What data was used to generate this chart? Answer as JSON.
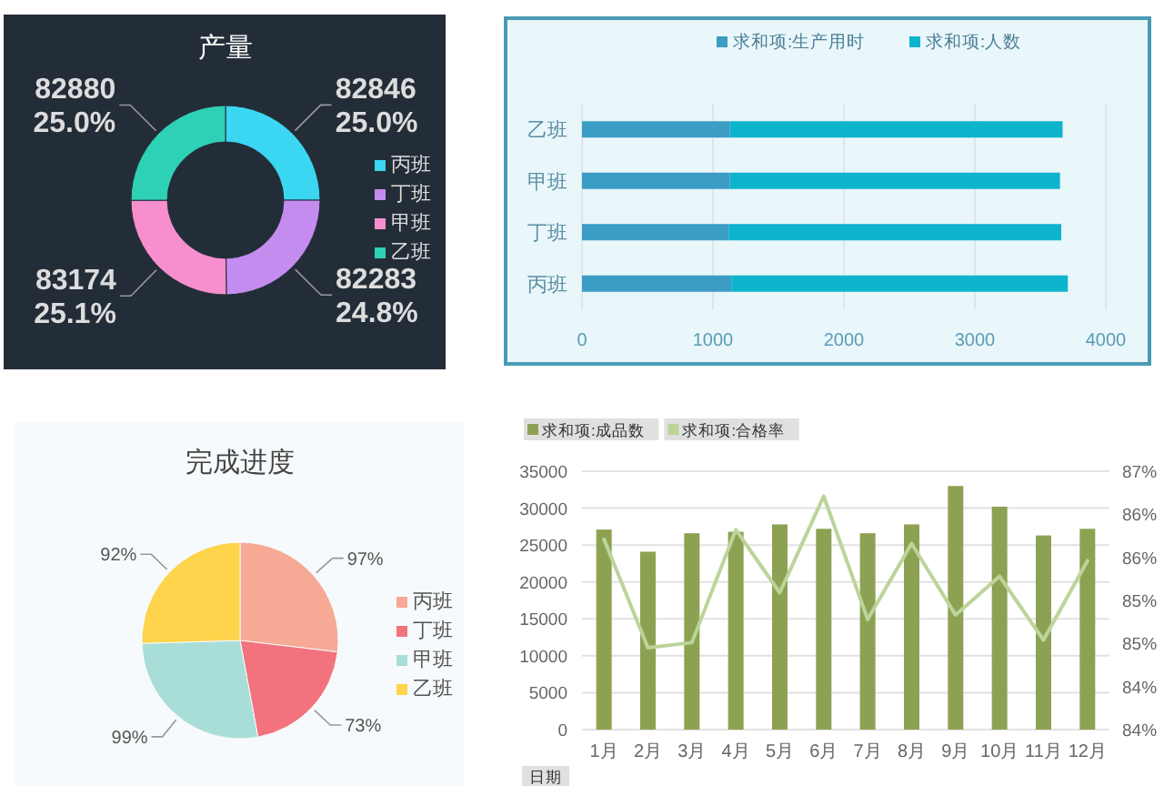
{
  "chart_data": [
    {
      "type": "donut",
      "title": "产量",
      "categories": [
        "丙班",
        "丁班",
        "甲班",
        "乙班"
      ],
      "values": [
        82846,
        82283,
        83174,
        82880
      ],
      "colors": [
        "#3ad6f2",
        "#c58cf0",
        "#f78fcf",
        "#2ed1b5"
      ],
      "value_labels": [
        "82846\n25.0%",
        "82283\n24.8%",
        "83174\n25.1%",
        "82880\n25.0%"
      ],
      "legend": "right"
    },
    {
      "type": "bar",
      "orientation": "horizontal",
      "stacked": true,
      "categories": [
        "乙班",
        "甲班",
        "丁班",
        "丙班"
      ],
      "series": [
        {
          "name": "求和项:生产用时",
          "color": "#3b9cc4",
          "values": [
            1130,
            1130,
            1120,
            1140
          ]
        },
        {
          "name": "求和项:人数",
          "color": "#0db4cc",
          "values": [
            2540,
            2520,
            2540,
            2570
          ]
        }
      ],
      "xlim": [
        0,
        4000
      ],
      "xticks": [
        0,
        1000,
        2000,
        3000,
        4000
      ],
      "grid": "x",
      "legend": "top"
    },
    {
      "type": "pie",
      "title": "完成进度",
      "categories": [
        "丙班",
        "丁班",
        "甲班",
        "乙班"
      ],
      "values": [
        97,
        73,
        99,
        92
      ],
      "colors": [
        "#f6a995",
        "#f2737d",
        "#a9ddd8",
        "#fdd44b"
      ],
      "value_labels": [
        "97%",
        "73%",
        "99%",
        "92%"
      ],
      "legend": "right"
    },
    {
      "type": "bar",
      "categories": [
        "1月",
        "2月",
        "3月",
        "4月",
        "5月",
        "6月",
        "7月",
        "8月",
        "9月",
        "10月",
        "11月",
        "12月"
      ],
      "series": [
        {
          "name": "求和项:成品数",
          "color": "#8ca252",
          "values": [
            27100,
            24100,
            26600,
            26800,
            27800,
            27200,
            26600,
            27800,
            33000,
            30200,
            26300,
            27200
          ]
        },
        {
          "name": "求和项:合格率",
          "type": "line",
          "axis": "y2",
          "color": "#bcd49a",
          "values": [
            86.21,
            84.95,
            85.01,
            86.32,
            85.59,
            86.71,
            85.28,
            86.16,
            85.33,
            85.78,
            85.04,
            85.96
          ]
        }
      ],
      "ylim": [
        0,
        35000
      ],
      "yticks": [
        0,
        5000,
        10000,
        15000,
        20000,
        25000,
        30000,
        35000
      ],
      "y2lim": [
        84,
        87
      ],
      "y2ticks": [
        {
          "value": 84,
          "label": "84%"
        },
        {
          "value": 84.5,
          "label": "84%"
        },
        {
          "value": 85,
          "label": "85%"
        },
        {
          "value": 85.5,
          "label": "85%"
        },
        {
          "value": 86,
          "label": "86%"
        },
        {
          "value": 86.5,
          "label": "86%"
        },
        {
          "value": 87,
          "label": "87%"
        }
      ],
      "grid": "y",
      "legend": "top left",
      "annotations": [
        "日期"
      ]
    }
  ]
}
